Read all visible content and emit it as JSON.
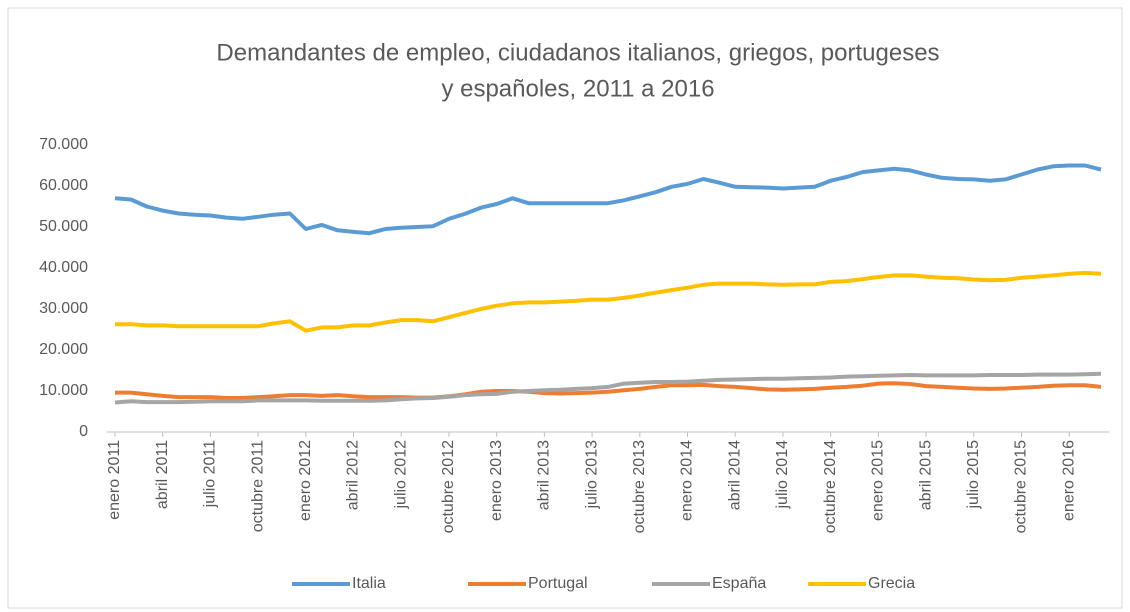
{
  "chart_data": {
    "type": "line",
    "title": [
      "Demandantes de empleo, ciudadanos italianos, griegos, portugeses",
      "y españoles, 2011 a 2016"
    ],
    "categories": [
      "enero 2011",
      null,
      null,
      "abril 2011",
      null,
      null,
      "julio 2011",
      null,
      null,
      "octubre 2011",
      null,
      null,
      "enero 2012",
      null,
      null,
      "abril 2012",
      null,
      null,
      "julio 2012",
      null,
      null,
      "octubre 2012",
      null,
      null,
      "enero 2013",
      null,
      null,
      "abril 2013",
      null,
      null,
      "julio 2013",
      null,
      null,
      "octubre 2013",
      null,
      null,
      "enero 2014",
      null,
      null,
      "abril 2014",
      null,
      null,
      "julio 2014",
      null,
      null,
      "octubre 2014",
      null,
      null,
      "enero 2015",
      null,
      null,
      "abril 2015",
      null,
      null,
      "julio 2015",
      null,
      null,
      "octubre 2015",
      null,
      null,
      "enero 2016",
      null,
      null
    ],
    "series": [
      {
        "name": "Italia",
        "color": "#5b9bd5",
        "values": [
          57000,
          56700,
          55000,
          54000,
          53300,
          53000,
          52800,
          52300,
          52000,
          52500,
          53000,
          53300,
          49500,
          50500,
          49200,
          48800,
          48500,
          49500,
          49800,
          50000,
          50200,
          52000,
          53200,
          54700,
          55600,
          57000,
          55800,
          55800,
          55800,
          55800,
          55800,
          55800,
          56500,
          57500,
          58500,
          59800,
          60500,
          61700,
          60800,
          59800,
          59700,
          59600,
          59400,
          59600,
          59800,
          61300,
          62200,
          63400,
          63800,
          64200,
          63800,
          62800,
          62000,
          61700,
          61600,
          61300,
          61600,
          62800,
          64000,
          64800,
          65000,
          65000,
          64000
        ]
      },
      {
        "name": "Portugal",
        "color": "#ed7d31",
        "values": [
          9600,
          9600,
          9200,
          8800,
          8500,
          8500,
          8500,
          8300,
          8300,
          8500,
          8700,
          9000,
          9000,
          8800,
          9000,
          8700,
          8500,
          8500,
          8500,
          8400,
          8400,
          8700,
          9200,
          9800,
          10000,
          10000,
          9800,
          9500,
          9400,
          9500,
          9600,
          9800,
          10200,
          10500,
          11000,
          11400,
          11400,
          11500,
          11200,
          11000,
          10700,
          10400,
          10300,
          10400,
          10500,
          10800,
          11000,
          11300,
          11800,
          11900,
          11700,
          11200,
          11000,
          10800,
          10600,
          10500,
          10600,
          10800,
          11000,
          11300,
          11400,
          11400,
          11000
        ]
      },
      {
        "name": "España",
        "color": "#a5a5a5",
        "values": [
          7200,
          7500,
          7300,
          7300,
          7300,
          7400,
          7500,
          7500,
          7500,
          7700,
          7700,
          7700,
          7700,
          7600,
          7600,
          7600,
          7600,
          7700,
          8000,
          8200,
          8300,
          8600,
          9000,
          9200,
          9300,
          9800,
          10000,
          10200,
          10300,
          10500,
          10700,
          11000,
          11800,
          12000,
          12200,
          12200,
          12300,
          12500,
          12700,
          12800,
          12900,
          13000,
          13000,
          13100,
          13200,
          13300,
          13500,
          13600,
          13700,
          13800,
          13900,
          13800,
          13800,
          13800,
          13800,
          13900,
          13900,
          13900,
          14000,
          14000,
          14000,
          14100,
          14200
        ]
      },
      {
        "name": "Grecia",
        "color": "#ffc000",
        "values": [
          26300,
          26300,
          26000,
          26000,
          25800,
          25800,
          25800,
          25800,
          25800,
          25800,
          26500,
          27000,
          24700,
          25500,
          25500,
          26000,
          26000,
          26700,
          27300,
          27300,
          27000,
          28000,
          29000,
          30000,
          30800,
          31400,
          31600,
          31600,
          31800,
          32000,
          32300,
          32300,
          32700,
          33300,
          34000,
          34600,
          35200,
          35900,
          36200,
          36200,
          36200,
          36000,
          35900,
          36000,
          36000,
          36600,
          36800,
          37300,
          37800,
          38200,
          38200,
          37900,
          37600,
          37500,
          37200,
          37000,
          37100,
          37600,
          37900,
          38200,
          38600,
          38800,
          38600
        ]
      }
    ],
    "ylim": [
      0,
      70000
    ],
    "yticks": [
      0,
      {
        "value": 10000,
        "label": "10.000"
      },
      {
        "value": 20000,
        "label": "20.000"
      },
      {
        "value": 30000,
        "label": "30.000"
      },
      {
        "value": 40000,
        "label": "40.000"
      },
      {
        "value": 50000,
        "label": "50.000"
      },
      {
        "value": 60000,
        "label": "60.000"
      },
      {
        "value": 70000,
        "label": "70.000"
      }
    ],
    "grid": false,
    "legend": "bottom"
  }
}
